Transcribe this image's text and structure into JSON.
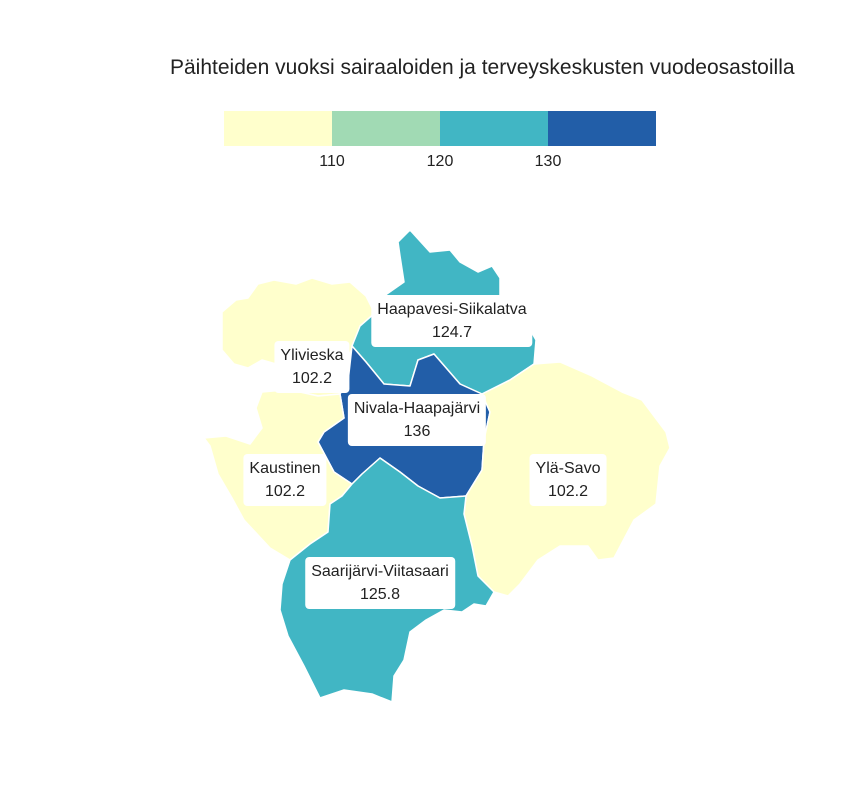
{
  "title": "Päihteiden vuoksi sairaaloiden ja terveyskeskusten vuodeosastoilla",
  "legend": {
    "colors": [
      "#ffffcc",
      "#a1dab4",
      "#41b6c4",
      "#225ea8"
    ],
    "ticks": [
      "110",
      "120",
      "130"
    ]
  },
  "regions": [
    {
      "name": "Haapavesi-Siikalatva",
      "value": "124.7",
      "color": "#41b6c4"
    },
    {
      "name": "Ylivieska",
      "value": "102.2",
      "color": "#ffffcc"
    },
    {
      "name": "Nivala-Haapajärvi",
      "value": "136",
      "color": "#225ea8"
    },
    {
      "name": "Kaustinen",
      "value": "102.2",
      "color": "#ffffcc"
    },
    {
      "name": "Ylä-Savo",
      "value": "102.2",
      "color": "#ffffcc"
    },
    {
      "name": "Saarijärvi-Viitasaari",
      "value": "125.8",
      "color": "#41b6c4"
    }
  ]
}
